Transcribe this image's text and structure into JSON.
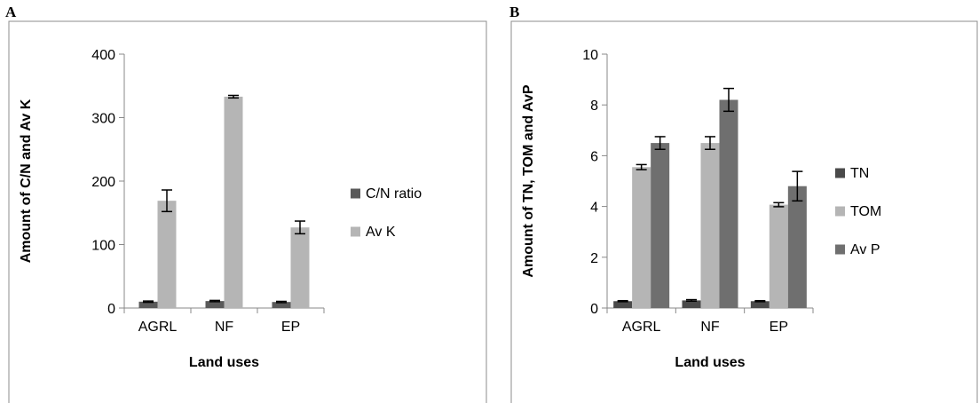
{
  "chart_data": [
    {
      "panel": "A",
      "type": "bar",
      "xlabel": "Land uses",
      "ylabel": "Amount of C/N and Av K",
      "ylim": [
        0,
        400
      ],
      "yticks": [
        0,
        100,
        200,
        300,
        400
      ],
      "categories": [
        "AGRL",
        "NF",
        "EP"
      ],
      "legend_position": "right",
      "grid": false,
      "series": [
        {
          "name": "C/N ratio",
          "color": "#5a5a5a",
          "values": [
            10,
            11,
            9.5
          ],
          "errors": [
            1,
            1,
            1
          ]
        },
        {
          "name": "Av K",
          "color": "#b5b5b5",
          "values": [
            169,
            333,
            127
          ],
          "errors": [
            17,
            2,
            10
          ]
        }
      ]
    },
    {
      "panel": "B",
      "type": "bar",
      "xlabel": "Land uses",
      "ylabel": "Amount of TN, TOM and AvP",
      "ylim": [
        0,
        10
      ],
      "yticks": [
        0,
        2,
        4,
        6,
        8,
        10
      ],
      "categories": [
        "AGRL",
        "NF",
        "EP"
      ],
      "legend_position": "right",
      "grid": false,
      "series": [
        {
          "name": "TN",
          "color": "#4a4a4a",
          "values": [
            0.27,
            0.3,
            0.27
          ],
          "errors": [
            0.02,
            0.03,
            0.02
          ]
        },
        {
          "name": "TOM",
          "color": "#b5b5b5",
          "values": [
            5.55,
            6.5,
            4.07
          ],
          "errors": [
            0.1,
            0.25,
            0.08
          ]
        },
        {
          "name": "Av P",
          "color": "#6f6f6f",
          "values": [
            6.5,
            8.2,
            4.8
          ],
          "errors": [
            0.25,
            0.45,
            0.58
          ]
        }
      ]
    }
  ]
}
